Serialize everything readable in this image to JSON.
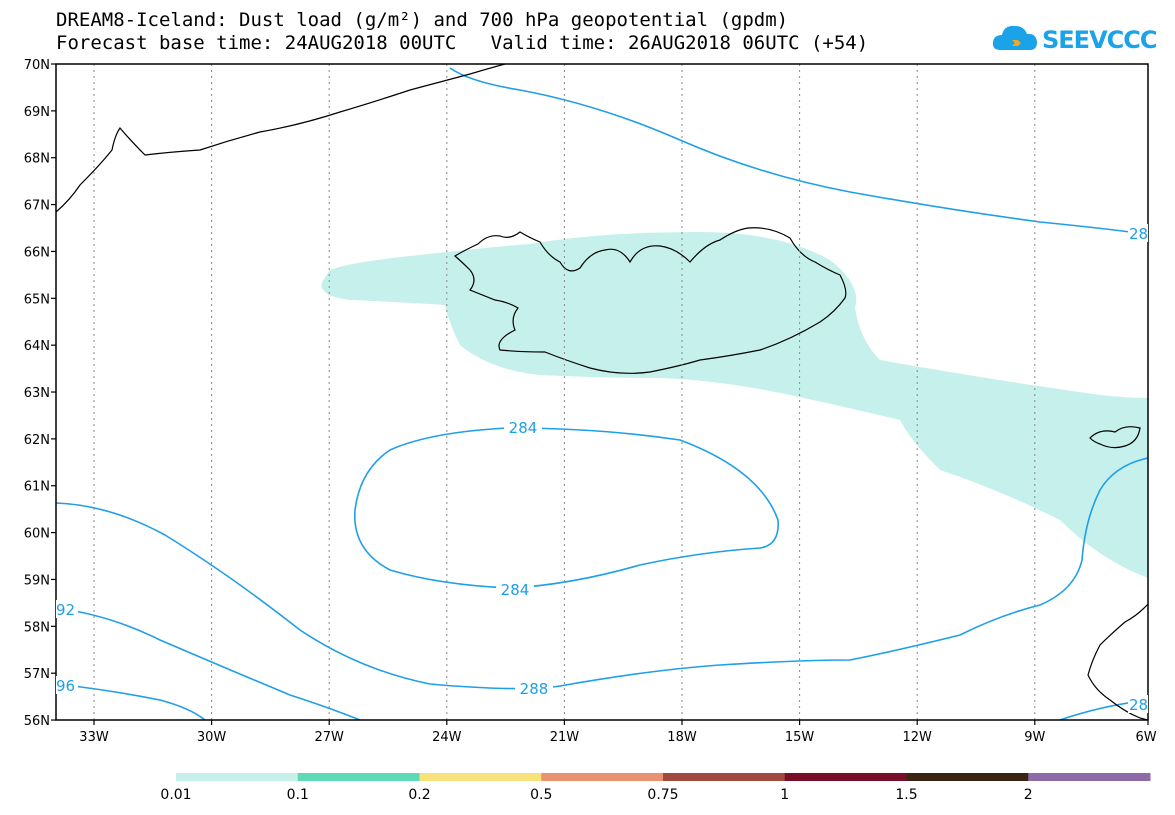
{
  "header": {
    "line1": "DREAM8-Iceland: Dust load (g/m²) and 700 hPa geopotential (gpdm)",
    "line2": "Forecast base time: 24AUG2018 00UTC   Valid time: 26AUG2018 06UTC (+54)"
  },
  "logo": {
    "text": "SEEVCCC",
    "icon": "cloud-icon"
  },
  "map": {
    "lon_labels": [
      "33W",
      "30W",
      "27W",
      "24W",
      "21W",
      "18W",
      "15W",
      "12W",
      "9W",
      "6W"
    ],
    "lat_labels": [
      "70N",
      "69N",
      "68N",
      "67N",
      "66N",
      "65N",
      "64N",
      "63N",
      "62N",
      "61N",
      "60N",
      "59N",
      "58N",
      "57N",
      "56N"
    ],
    "contour_color": "#1e9fe8",
    "dust_color": "#c6f0eb",
    "contour_labels": {
      "c284_top": "284",
      "c284_bottom": "284",
      "c288": "288",
      "c292": "92",
      "c296": "96",
      "c280": "28",
      "c_se": "28"
    }
  },
  "colorbar": {
    "ticks": [
      "0.01",
      "0.1",
      "0.2",
      "0.5",
      "0.75",
      "1",
      "1.5",
      "2"
    ],
    "colors": [
      "#c6f0eb",
      "#5ed9b5",
      "#f7e27b",
      "#e8926f",
      "#a0493f",
      "#7a0f2a",
      "#3b2412",
      "#8e6aa8"
    ]
  }
}
